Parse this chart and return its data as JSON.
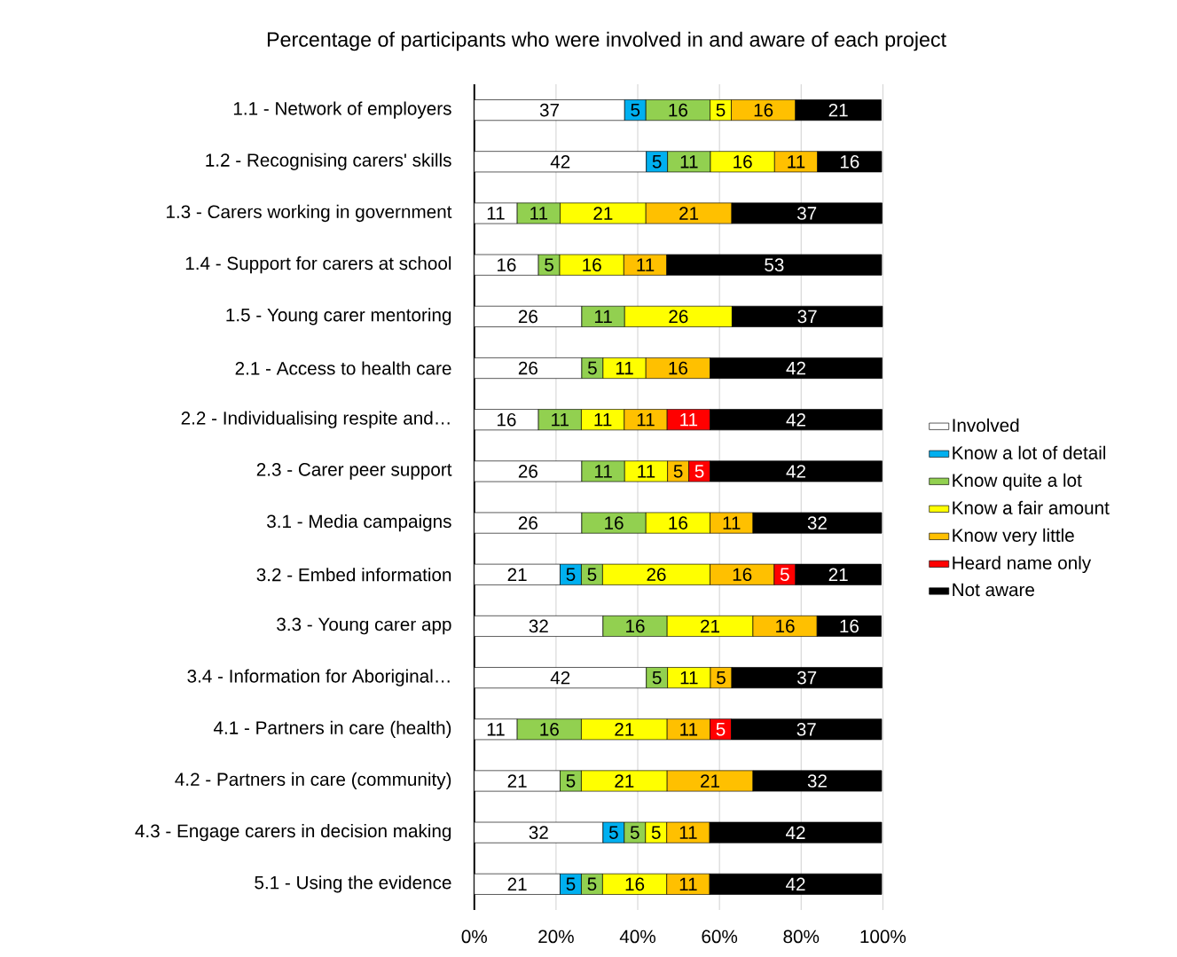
{
  "chart_data": {
    "type": "bar",
    "orientation": "horizontal",
    "stacked": true,
    "title": "Percentage of participants who were involved in and aware of each project",
    "categories": [
      "1.1 - Network of employers",
      "1.2 - Recognising carers' skills",
      "1.3 - Carers working in government",
      "1.4 - Support for carers at school",
      "1.5 - Young carer mentoring",
      "2.1 - Access to health care",
      "2.2 - Individualising respite and…",
      "2.3 - Carer peer support",
      "3.1 - Media campaigns",
      "3.2 - Embed information",
      "3.3 - Young carer app",
      "3.4 - Information for Aboriginal…",
      "4.1 - Partners in care (health)",
      "4.2 - Partners in care (community)",
      "4.3 - Engage carers in decision making",
      "5.1 - Using the evidence"
    ],
    "series": [
      {
        "name": "Involved",
        "color": "#ffffff",
        "values": [
          36.8,
          42.1,
          10.5,
          15.7,
          26.3,
          26.3,
          15.7,
          26.3,
          26.3,
          21,
          31.5,
          42.1,
          10.5,
          21,
          31.5,
          21
        ],
        "value_labels": [
          "37",
          "42",
          "11",
          "16",
          "26",
          "26",
          "16",
          "26",
          "26",
          "21",
          "32",
          "42",
          "11",
          "21",
          "32",
          "21"
        ]
      },
      {
        "name": "Know a lot of detail",
        "color": "#00b0f0",
        "values": [
          5.2,
          5.2,
          null,
          null,
          null,
          null,
          null,
          null,
          null,
          5.2,
          null,
          null,
          null,
          null,
          5.2,
          5.2
        ],
        "value_labels": [
          "5",
          "5",
          null,
          null,
          null,
          null,
          null,
          null,
          null,
          "5",
          null,
          null,
          null,
          null,
          "5",
          "5"
        ]
      },
      {
        "name": "Know quite a lot",
        "color": "#92d050",
        "values": [
          15.7,
          10.5,
          10.5,
          5.2,
          10.5,
          5.2,
          10.5,
          10.5,
          15.7,
          5.2,
          15.7,
          5.2,
          15.7,
          5.2,
          5.2,
          5.2
        ],
        "value_labels": [
          "16",
          "11",
          "11",
          "5",
          "11",
          "5",
          "11",
          "11",
          "16",
          "5",
          "16",
          "5",
          "16",
          "5",
          "5",
          "5"
        ]
      },
      {
        "name": "Know a fair amount",
        "color": "#ffff00",
        "values": [
          5.2,
          15.7,
          21,
          15.7,
          26.3,
          10.5,
          10.5,
          10.5,
          15.7,
          26.3,
          21,
          10.5,
          21,
          21,
          5.2,
          15.7
        ],
        "value_labels": [
          "5",
          "16",
          "21",
          "16",
          "26",
          "11",
          "11",
          "11",
          "16",
          "26",
          "21",
          "11",
          "21",
          "21",
          "5",
          "16"
        ]
      },
      {
        "name": "Know very little",
        "color": "#ffc000",
        "values": [
          15.7,
          10.5,
          21,
          10.5,
          null,
          15.7,
          10.5,
          5.2,
          10.5,
          15.7,
          15.7,
          5.2,
          10.5,
          21,
          10.5,
          10.5
        ],
        "value_labels": [
          "16",
          "11",
          "21",
          "11",
          null,
          "16",
          "11",
          "5",
          "11",
          "16",
          "16",
          "5",
          "11",
          "21",
          "11",
          "11"
        ]
      },
      {
        "name": "Heard name only",
        "color": "#ff0000",
        "values": [
          null,
          null,
          null,
          null,
          null,
          null,
          10.5,
          5.2,
          null,
          5.2,
          null,
          null,
          5.2,
          null,
          null,
          null
        ],
        "value_labels": [
          null,
          null,
          null,
          null,
          null,
          null,
          "11",
          "5",
          null,
          "5",
          null,
          null,
          "5",
          null,
          null,
          null
        ]
      },
      {
        "name": "Not aware",
        "color": "#000000",
        "values": [
          21,
          15.7,
          36.8,
          52.6,
          36.8,
          42.1,
          42.1,
          42.1,
          31.5,
          21,
          15.7,
          36.8,
          36.8,
          31.5,
          42.1,
          42.1
        ],
        "value_labels": [
          "21",
          "16",
          "37",
          "53",
          "37",
          "42",
          "42",
          "42",
          "32",
          "21",
          "16",
          "37",
          "37",
          "32",
          "42",
          "42"
        ]
      }
    ],
    "xlim": [
      0,
      100
    ],
    "xticks": [
      {
        "value": 0,
        "label": "0%"
      },
      {
        "value": 20,
        "label": "20%"
      },
      {
        "value": 40,
        "label": "40%"
      },
      {
        "value": 60,
        "label": "60%"
      },
      {
        "value": 80,
        "label": "80%"
      },
      {
        "value": 100,
        "label": "100%"
      }
    ],
    "grid": "x",
    "legend": "right"
  }
}
